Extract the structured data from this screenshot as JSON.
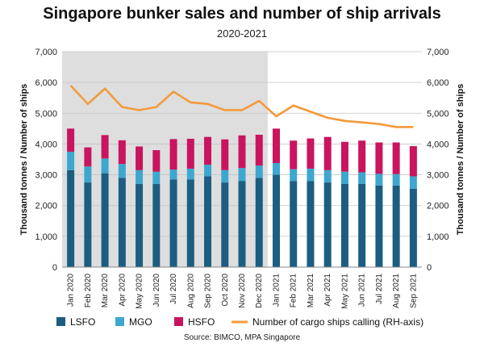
{
  "chart_data": {
    "type": "bar",
    "title": "Singapore bunker sales and number of ship arrivals",
    "subtitle": "2020-2021",
    "source": "Source: BIMCO, MPA Singapore",
    "ylabel_left": "Thousand tonnes / Number of ships",
    "ylabel_right": "Thousand tonnes / Number of ships",
    "ylim": [
      0,
      7000
    ],
    "yticks": [
      "0",
      "1,000",
      "2,000",
      "3,000",
      "4,000",
      "5,000",
      "6,000",
      "7,000"
    ],
    "ytick_values": [
      0,
      1000,
      2000,
      3000,
      4000,
      5000,
      6000,
      7000
    ],
    "grid": true,
    "legend_position": "bottom",
    "shaded_period": "Jan 2020 - Dec 2020",
    "categories": [
      "Jan 2020",
      "Feb 2020",
      "Mar 2020",
      "Apr 2020",
      "May 2020",
      "Jun 2020",
      "Jul 2020",
      "Aug 2020",
      "Sep 2020",
      "Oct 2020",
      "Nov 2020",
      "Dec 2020",
      "Jan 2021",
      "Feb 2021",
      "Mar 2021",
      "Apr 2021",
      "May 2021",
      "Jun 2021",
      "Jul 2021",
      "Aug 2021",
      "Sep 2021"
    ],
    "series": [
      {
        "name": "LSFO",
        "kind": "stacked-bar",
        "color": "#1c5d82",
        "values": [
          3150,
          2750,
          3050,
          2900,
          2700,
          2700,
          2850,
          2850,
          2950,
          2750,
          2800,
          2900,
          3000,
          2800,
          2800,
          2750,
          2700,
          2700,
          2650,
          2650,
          2550
        ]
      },
      {
        "name": "MGO",
        "kind": "stacked-bar",
        "color": "#3da7cf",
        "values": [
          600,
          520,
          480,
          450,
          450,
          400,
          320,
          350,
          380,
          400,
          420,
          400,
          380,
          380,
          400,
          400,
          400,
          380,
          380,
          370,
          400
        ]
      },
      {
        "name": "HSFO",
        "kind": "stacked-bar",
        "color": "#c9145e",
        "values": [
          750,
          620,
          760,
          770,
          770,
          700,
          990,
          970,
          900,
          1000,
          1060,
          1000,
          1120,
          930,
          980,
          1080,
          970,
          1030,
          1020,
          1030,
          980
        ]
      },
      {
        "name": "Number of cargo ships calling (RH-axis)",
        "kind": "line",
        "color": "#f39a3b",
        "values": [
          5900,
          5300,
          5800,
          5200,
          5100,
          5200,
          5700,
          5350,
          5300,
          5100,
          5100,
          5400,
          4900,
          5250,
          5050,
          4850,
          4750,
          4700,
          4650,
          4550,
          4550
        ]
      }
    ]
  }
}
